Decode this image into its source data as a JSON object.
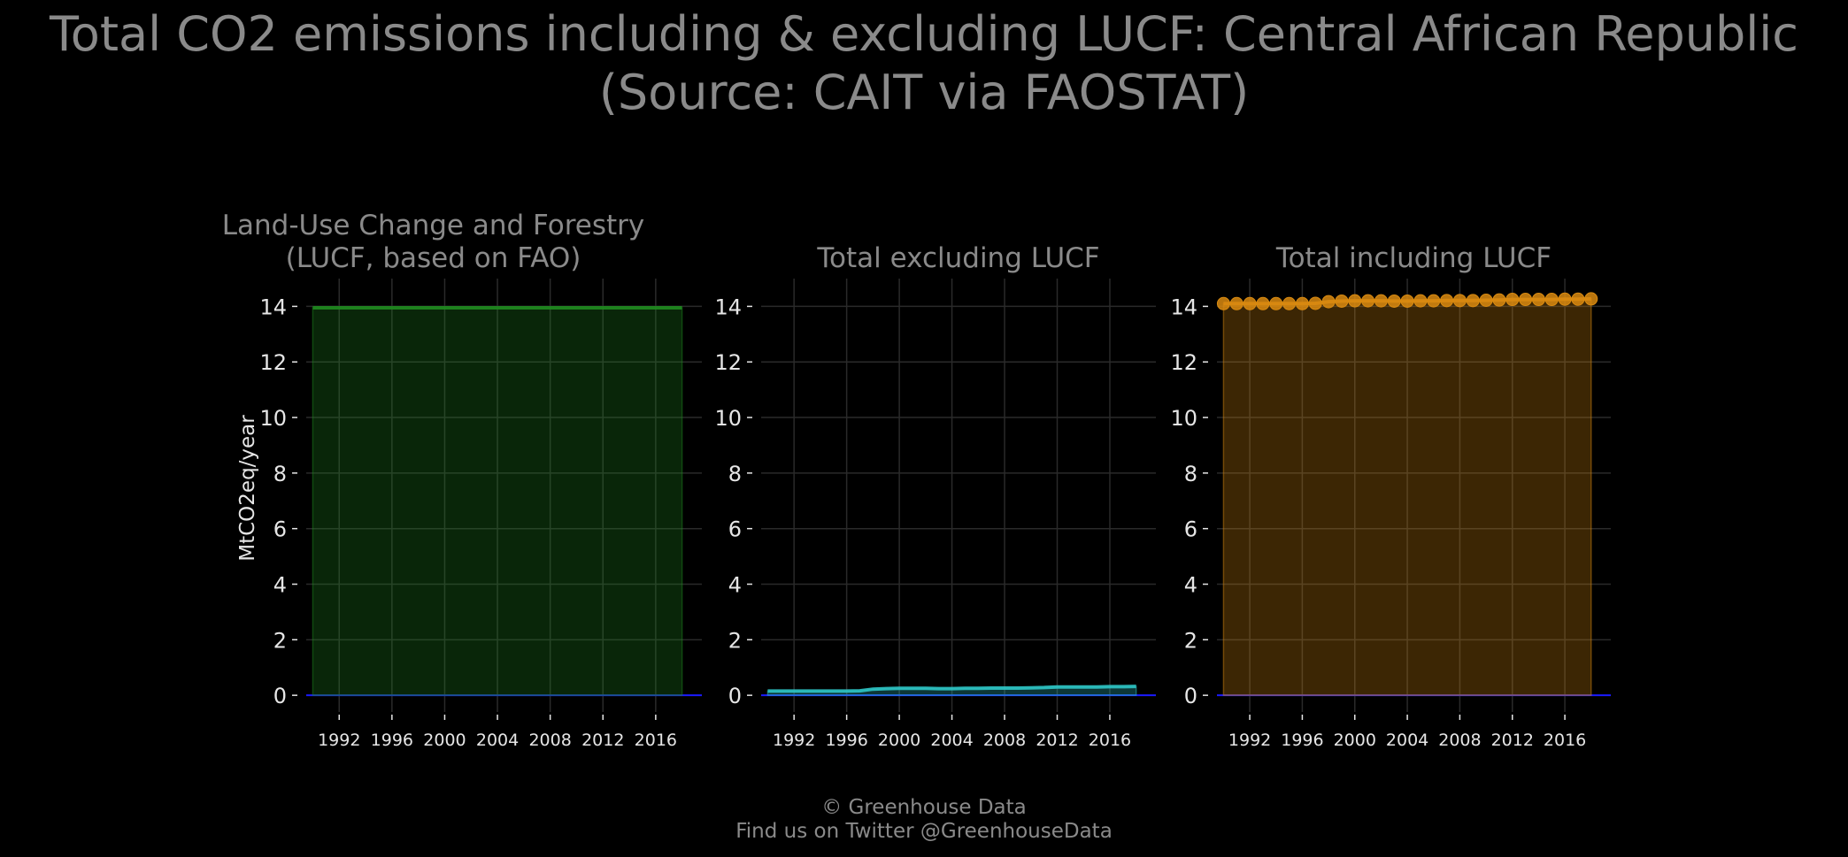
{
  "title": {
    "line1": "Total CO2 emissions including & excluding LUCF: Central African Republic",
    "line2": "(Source: CAIT via FAOSTAT)"
  },
  "footer": {
    "line1": "© Greenhouse Data",
    "line2": "Find us on Twitter @GreenhouseData"
  },
  "colors": {
    "background": "#000000",
    "title": "#8a8a8a",
    "tick_labels": "#e6e6e6",
    "grid": "#2a2a2a",
    "zero_line": "#1a1aff",
    "lucf": "#1f8a1f",
    "excl_lucf": "#2ec4c4",
    "incl_lucf": "#d98a10"
  },
  "chart_data": [
    {
      "type": "area",
      "title": "Land-Use Change and Forestry\n(LUCF, based on FAO)",
      "xlabel": "",
      "ylabel": "MtCO2eq/year",
      "xlim": [
        1989.5,
        2019.5
      ],
      "ylim": [
        -0.6,
        15
      ],
      "xticks": [
        1992,
        1996,
        2000,
        2004,
        2008,
        2012,
        2016
      ],
      "yticks": [
        0,
        2,
        4,
        6,
        8,
        10,
        12,
        14
      ],
      "grid": true,
      "color": "lucf",
      "markers": false,
      "x": [
        1990,
        1991,
        1992,
        1993,
        1994,
        1995,
        1996,
        1997,
        1998,
        1999,
        2000,
        2001,
        2002,
        2003,
        2004,
        2005,
        2006,
        2007,
        2008,
        2009,
        2010,
        2011,
        2012,
        2013,
        2014,
        2015,
        2016,
        2017,
        2018
      ],
      "values": [
        13.95,
        13.95,
        13.95,
        13.95,
        13.95,
        13.95,
        13.95,
        13.95,
        13.95,
        13.95,
        13.95,
        13.95,
        13.95,
        13.95,
        13.95,
        13.95,
        13.95,
        13.95,
        13.95,
        13.95,
        13.95,
        13.95,
        13.95,
        13.95,
        13.95,
        13.95,
        13.95,
        13.95,
        13.95
      ]
    },
    {
      "type": "area",
      "title": "Total excluding LUCF",
      "xlabel": "",
      "ylabel": "",
      "xlim": [
        1989.5,
        2019.5
      ],
      "ylim": [
        -0.6,
        15
      ],
      "xticks": [
        1992,
        1996,
        2000,
        2004,
        2008,
        2012,
        2016
      ],
      "yticks": [
        0,
        2,
        4,
        6,
        8,
        10,
        12,
        14
      ],
      "grid": true,
      "color": "excl_lucf",
      "markers": false,
      "x": [
        1990,
        1991,
        1992,
        1993,
        1994,
        1995,
        1996,
        1997,
        1998,
        1999,
        2000,
        2001,
        2002,
        2003,
        2004,
        2005,
        2006,
        2007,
        2008,
        2009,
        2010,
        2011,
        2012,
        2013,
        2014,
        2015,
        2016,
        2017,
        2018
      ],
      "values": [
        0.15,
        0.15,
        0.15,
        0.15,
        0.15,
        0.15,
        0.15,
        0.16,
        0.22,
        0.24,
        0.25,
        0.25,
        0.25,
        0.24,
        0.24,
        0.25,
        0.25,
        0.26,
        0.26,
        0.26,
        0.27,
        0.28,
        0.3,
        0.3,
        0.3,
        0.3,
        0.31,
        0.31,
        0.32
      ]
    },
    {
      "type": "area",
      "title": "Total including LUCF",
      "xlabel": "",
      "ylabel": "",
      "xlim": [
        1989.5,
        2019.5
      ],
      "ylim": [
        -0.6,
        15
      ],
      "xticks": [
        1992,
        1996,
        2000,
        2004,
        2008,
        2012,
        2016
      ],
      "yticks": [
        0,
        2,
        4,
        6,
        8,
        10,
        12,
        14
      ],
      "grid": true,
      "color": "incl_lucf",
      "markers": true,
      "x": [
        1990,
        1991,
        1992,
        1993,
        1994,
        1995,
        1996,
        1997,
        1998,
        1999,
        2000,
        2001,
        2002,
        2003,
        2004,
        2005,
        2006,
        2007,
        2008,
        2009,
        2010,
        2011,
        2012,
        2013,
        2014,
        2015,
        2016,
        2017,
        2018
      ],
      "values": [
        14.1,
        14.1,
        14.1,
        14.1,
        14.1,
        14.1,
        14.1,
        14.11,
        14.17,
        14.19,
        14.2,
        14.2,
        14.2,
        14.19,
        14.19,
        14.2,
        14.2,
        14.21,
        14.21,
        14.21,
        14.22,
        14.23,
        14.25,
        14.25,
        14.25,
        14.25,
        14.26,
        14.26,
        14.27
      ]
    }
  ]
}
